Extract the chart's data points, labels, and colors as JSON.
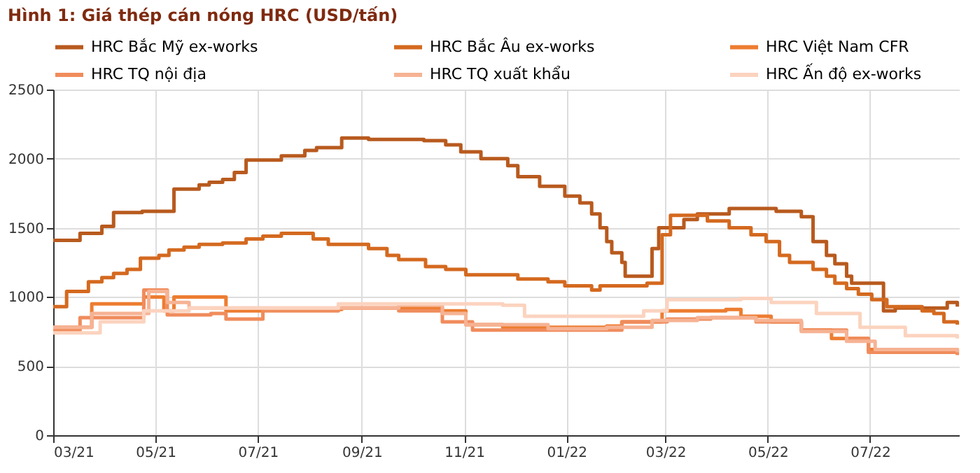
{
  "chart_data": {
    "type": "step",
    "title": "Hình 1: Giá thép cán nóng HRC (USD/tấn)",
    "xlim": [
      "2021-03-01",
      "2022-08-23"
    ],
    "xticks": [
      {
        "value": "2021-03-01",
        "label": "03/21"
      },
      {
        "value": "2021-05-01",
        "label": "05/21"
      },
      {
        "value": "2021-07-01",
        "label": "07/21"
      },
      {
        "value": "2021-09-01",
        "label": "09/21"
      },
      {
        "value": "2021-11-01",
        "label": "11/21"
      },
      {
        "value": "2022-01-01",
        "label": "01/22"
      },
      {
        "value": "2022-03-01",
        "label": "03/22"
      },
      {
        "value": "2022-05-01",
        "label": "05/22"
      },
      {
        "value": "2022-07-01",
        "label": "07/22"
      }
    ],
    "ylim": [
      0,
      2500
    ],
    "yticks": [
      0,
      500,
      1000,
      1500,
      2000,
      2500
    ],
    "grid": true,
    "legend": "top",
    "marker": "none",
    "line_style": "solid",
    "series": [
      {
        "name": "HRC Bắc Mỹ ex-works",
        "color": "#b85a1e",
        "x": [
          "2021-03-01",
          "2021-03-17",
          "2021-03-30",
          "2021-04-06",
          "2021-04-23",
          "2021-05-12",
          "2021-05-27",
          "2021-06-02",
          "2021-06-10",
          "2021-06-17",
          "2021-06-24",
          "2021-07-15",
          "2021-07-29",
          "2021-08-05",
          "2021-08-20",
          "2021-09-05",
          "2021-10-08",
          "2021-10-21",
          "2021-10-30",
          "2021-11-11",
          "2021-11-27",
          "2021-12-03",
          "2021-12-16",
          "2021-12-31",
          "2022-01-09",
          "2022-01-16",
          "2022-01-21",
          "2022-01-25",
          "2022-01-28",
          "2022-02-03",
          "2022-02-05",
          "2022-02-21",
          "2022-02-25",
          "2022-03-12",
          "2022-03-20",
          "2022-04-08",
          "2022-05-06",
          "2022-05-21",
          "2022-05-28",
          "2022-06-05",
          "2022-06-10",
          "2022-06-17",
          "2022-06-20",
          "2022-07-09",
          "2022-07-16",
          "2022-08-16",
          "2022-08-22"
        ],
        "values": [
          1410,
          1460,
          1510,
          1610,
          1620,
          1780,
          1810,
          1830,
          1850,
          1900,
          1990,
          2020,
          2060,
          2080,
          2150,
          2140,
          2130,
          2100,
          2050,
          2000,
          1950,
          1870,
          1800,
          1730,
          1680,
          1600,
          1500,
          1400,
          1320,
          1250,
          1150,
          1350,
          1500,
          1560,
          1600,
          1640,
          1620,
          1580,
          1400,
          1300,
          1240,
          1150,
          1100,
          900,
          920,
          960,
          930
        ]
      },
      {
        "name": "HRC Bắc Âu ex-works",
        "color": "#d4691f",
        "x": [
          "2021-03-01",
          "2021-03-09",
          "2021-03-22",
          "2021-03-30",
          "2021-04-06",
          "2021-04-14",
          "2021-04-22",
          "2021-05-03",
          "2021-05-09",
          "2021-05-18",
          "2021-05-27",
          "2021-06-10",
          "2021-06-24",
          "2021-07-04",
          "2021-07-15",
          "2021-08-03",
          "2021-08-12",
          "2021-09-05",
          "2021-09-16",
          "2021-09-23",
          "2021-10-09",
          "2021-10-21",
          "2021-11-02",
          "2021-12-03",
          "2021-12-21",
          "2021-12-31",
          "2022-01-16",
          "2022-01-21",
          "2022-02-18",
          "2022-02-27",
          "2022-03-04",
          "2022-03-26",
          "2022-04-08",
          "2022-04-21",
          "2022-04-30",
          "2022-05-08",
          "2022-05-14",
          "2022-05-28",
          "2022-06-05",
          "2022-06-10",
          "2022-06-17",
          "2022-06-24",
          "2022-07-02",
          "2022-07-11",
          "2022-08-01",
          "2022-08-08",
          "2022-08-14",
          "2022-08-22"
        ],
        "values": [
          930,
          1040,
          1110,
          1140,
          1170,
          1200,
          1280,
          1300,
          1340,
          1360,
          1380,
          1390,
          1420,
          1440,
          1460,
          1420,
          1380,
          1350,
          1300,
          1270,
          1220,
          1200,
          1160,
          1130,
          1110,
          1080,
          1050,
          1080,
          1100,
          1450,
          1590,
          1550,
          1500,
          1450,
          1400,
          1300,
          1250,
          1200,
          1150,
          1100,
          1060,
          1020,
          980,
          930,
          900,
          880,
          820,
          800
        ]
      },
      {
        "name": "HRC Việt Nam CFR",
        "color": "#ed7d31",
        "x": [
          "2021-03-01",
          "2021-03-24",
          "2021-04-24",
          "2021-05-06",
          "2021-05-12",
          "2021-06-12",
          "2021-07-04",
          "2021-08-20",
          "2021-10-19",
          "2021-11-02",
          "2021-11-24",
          "2022-01-25",
          "2022-02-03",
          "2022-02-27",
          "2022-04-06",
          "2022-04-15",
          "2022-05-03",
          "2022-05-21",
          "2022-06-08",
          "2022-06-30",
          "2022-08-22"
        ],
        "values": [
          780,
          950,
          1000,
          900,
          1000,
          900,
          910,
          920,
          900,
          800,
          780,
          790,
          820,
          900,
          910,
          860,
          820,
          760,
          700,
          620,
          600
        ]
      },
      {
        "name": "HRC TQ nội địa",
        "color": "#f08c5c",
        "x": [
          "2021-03-01",
          "2021-03-17",
          "2021-04-24",
          "2021-05-08",
          "2021-06-03",
          "2021-06-12",
          "2021-07-04",
          "2021-08-18",
          "2021-09-23",
          "2021-10-19",
          "2021-11-06",
          "2022-01-07",
          "2022-02-03",
          "2022-03-02",
          "2022-03-28",
          "2022-04-24",
          "2022-05-21",
          "2022-06-17",
          "2022-06-30",
          "2022-08-22"
        ],
        "values": [
          760,
          850,
          1050,
          870,
          880,
          840,
          900,
          920,
          900,
          820,
          760,
          760,
          820,
          840,
          850,
          820,
          760,
          700,
          600,
          580
        ]
      },
      {
        "name": "HRC TQ xuất khẩu",
        "color": "#f6b394",
        "x": [
          "2021-03-01",
          "2021-03-24",
          "2021-04-27",
          "2021-05-08",
          "2021-05-21",
          "2021-09-23",
          "2021-10-19",
          "2021-11-02",
          "2021-12-21",
          "2022-01-25",
          "2022-02-21",
          "2022-03-20",
          "2022-04-24",
          "2022-05-21",
          "2022-06-17",
          "2022-07-04",
          "2022-08-22"
        ],
        "values": [
          780,
          880,
          1040,
          960,
          920,
          940,
          880,
          800,
          770,
          780,
          830,
          850,
          830,
          750,
          680,
          620,
          600
        ]
      },
      {
        "name": "HRC Ấn độ ex-works",
        "color": "#fbd3bf",
        "x": [
          "2021-03-01",
          "2021-03-29",
          "2021-04-24",
          "2021-05-21",
          "2021-07-22",
          "2021-08-18",
          "2021-10-19",
          "2021-11-24",
          "2021-12-07",
          "2022-01-25",
          "2022-02-16",
          "2022-03-02",
          "2022-04-15",
          "2022-05-03",
          "2022-05-30",
          "2022-06-25",
          "2022-07-22",
          "2022-08-22"
        ],
        "values": [
          740,
          820,
          900,
          920,
          920,
          950,
          950,
          940,
          860,
          860,
          900,
          980,
          990,
          960,
          880,
          780,
          720,
          700
        ]
      }
    ]
  }
}
